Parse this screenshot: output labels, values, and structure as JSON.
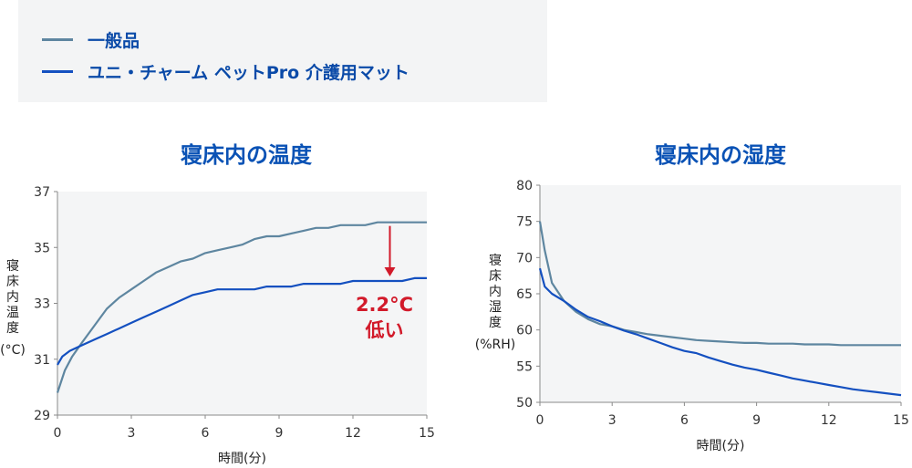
{
  "legend": {
    "items": [
      {
        "label": "一般品",
        "color": "#5e86a0"
      },
      {
        "label": "ユニ・チャーム ペットPro 介護用マット",
        "color": "#1450c0"
      }
    ]
  },
  "chart_data": [
    {
      "type": "line",
      "title": "寝床内の温度",
      "xlabel": "時間(分)",
      "ylabel_lines": [
        "寝",
        "床",
        "内",
        "温",
        "度"
      ],
      "ylabel_unit": "(°C)",
      "xlim": [
        0,
        15
      ],
      "ylim": [
        29,
        37
      ],
      "xticks": [
        0,
        3,
        6,
        9,
        12,
        15
      ],
      "yticks": [
        29,
        31,
        33,
        35,
        37
      ],
      "grid": false,
      "annotation": {
        "lines": [
          "2.2°C",
          "低い"
        ],
        "color": "#d21a2a"
      },
      "series": [
        {
          "color": "#5e86a0",
          "x": [
            0,
            0.3,
            0.6,
            1,
            1.5,
            2,
            2.5,
            3,
            3.5,
            4,
            4.5,
            5,
            5.5,
            6,
            6.5,
            7,
            7.5,
            8,
            8.5,
            9,
            9.5,
            10,
            10.5,
            11,
            11.5,
            12,
            12.5,
            13,
            13.5,
            14,
            14.5,
            15
          ],
          "y": [
            29.8,
            30.6,
            31.1,
            31.6,
            32.2,
            32.8,
            33.2,
            33.5,
            33.8,
            34.1,
            34.3,
            34.5,
            34.6,
            34.8,
            34.9,
            35.0,
            35.1,
            35.3,
            35.4,
            35.4,
            35.5,
            35.6,
            35.7,
            35.7,
            35.8,
            35.8,
            35.8,
            35.9,
            35.9,
            35.9,
            35.9,
            35.9
          ]
        },
        {
          "color": "#1450c0",
          "x": [
            0,
            0.2,
            0.5,
            1,
            1.5,
            2,
            2.5,
            3,
            3.5,
            4,
            4.5,
            5,
            5.5,
            6,
            6.5,
            7,
            7.5,
            8,
            8.5,
            9,
            9.5,
            10,
            10.5,
            11,
            11.5,
            12,
            12.5,
            13,
            13.5,
            14,
            14.5,
            15
          ],
          "y": [
            30.8,
            31.1,
            31.3,
            31.5,
            31.7,
            31.9,
            32.1,
            32.3,
            32.5,
            32.7,
            32.9,
            33.1,
            33.3,
            33.4,
            33.5,
            33.5,
            33.5,
            33.5,
            33.6,
            33.6,
            33.6,
            33.7,
            33.7,
            33.7,
            33.7,
            33.8,
            33.8,
            33.8,
            33.8,
            33.8,
            33.9,
            33.9
          ]
        }
      ]
    },
    {
      "type": "line",
      "title": "寝床内の湿度",
      "xlabel": "時間(分)",
      "ylabel_lines": [
        "寝",
        "床",
        "内",
        "湿",
        "度"
      ],
      "ylabel_unit": "(%RH)",
      "xlim": [
        0,
        15
      ],
      "ylim": [
        50,
        80
      ],
      "xticks": [
        0,
        3,
        6,
        9,
        12,
        15
      ],
      "yticks": [
        50,
        55,
        60,
        65,
        70,
        75,
        80
      ],
      "grid": false,
      "series": [
        {
          "color": "#5e86a0",
          "x": [
            0,
            0.2,
            0.5,
            1,
            1.5,
            2,
            2.5,
            3,
            3.5,
            4,
            4.5,
            5,
            5.5,
            6,
            6.5,
            7,
            7.5,
            8,
            8.5,
            9,
            9.5,
            10,
            10.5,
            11,
            11.5,
            12,
            12.5,
            13,
            13.5,
            14,
            14.5,
            15
          ],
          "y": [
            75,
            71,
            66.5,
            64,
            62.5,
            61.5,
            60.8,
            60.5,
            60,
            59.7,
            59.4,
            59.2,
            59.0,
            58.8,
            58.6,
            58.5,
            58.4,
            58.3,
            58.2,
            58.2,
            58.1,
            58.1,
            58.1,
            58.0,
            58.0,
            58.0,
            57.9,
            57.9,
            57.9,
            57.9,
            57.9,
            57.9
          ]
        },
        {
          "color": "#1450c0",
          "x": [
            0,
            0.2,
            0.5,
            1,
            1.5,
            2,
            2.5,
            3,
            3.5,
            4,
            4.5,
            5,
            5.5,
            6,
            6.5,
            7,
            7.5,
            8,
            8.5,
            9,
            9.5,
            10,
            10.5,
            11,
            11.5,
            12,
            12.5,
            13,
            13.5,
            14,
            14.5,
            15
          ],
          "y": [
            68.5,
            66,
            65,
            64,
            62.8,
            61.8,
            61.2,
            60.5,
            59.9,
            59.4,
            58.8,
            58.2,
            57.6,
            57.1,
            56.8,
            56.2,
            55.7,
            55.2,
            54.8,
            54.5,
            54.1,
            53.7,
            53.3,
            53.0,
            52.7,
            52.4,
            52.1,
            51.8,
            51.6,
            51.4,
            51.2,
            51.0
          ]
        }
      ]
    }
  ]
}
